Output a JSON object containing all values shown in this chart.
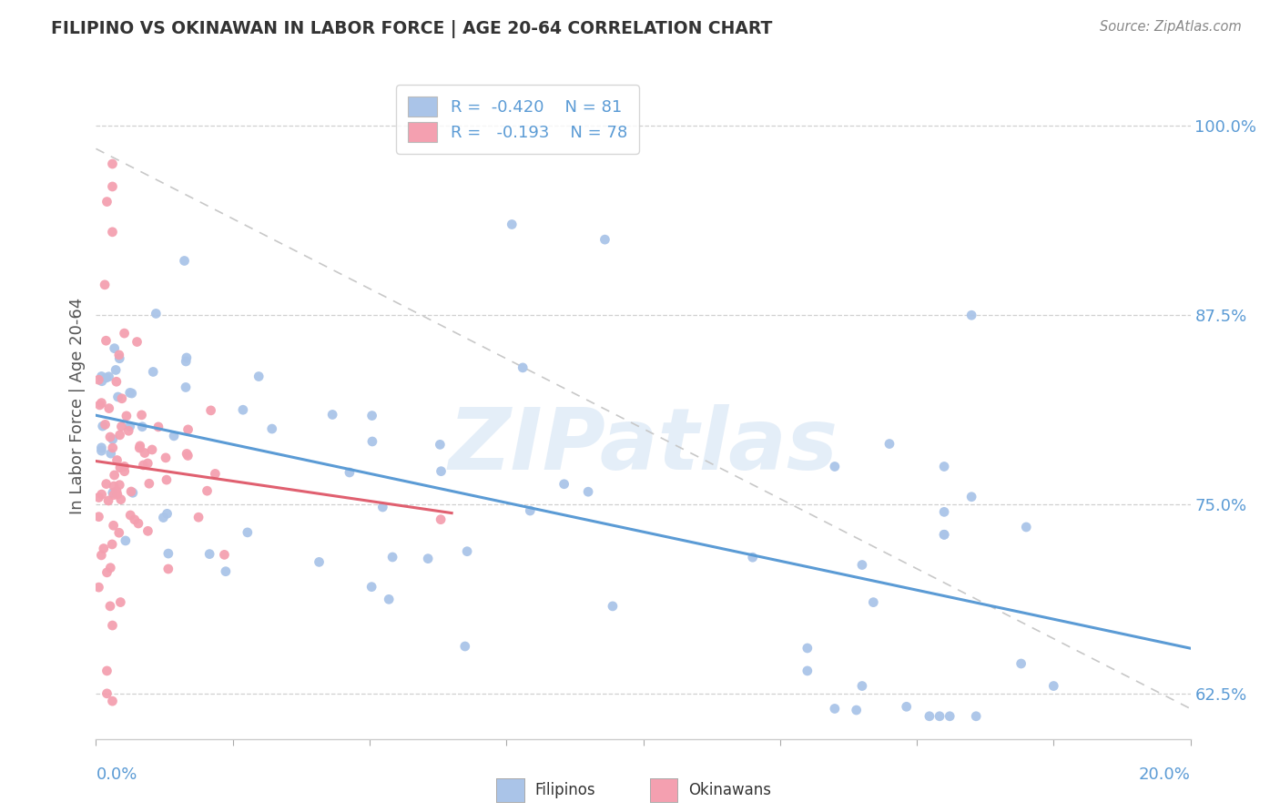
{
  "title": "FILIPINO VS OKINAWAN IN LABOR FORCE | AGE 20-64 CORRELATION CHART",
  "source": "Source: ZipAtlas.com",
  "ylabel": "In Labor Force | Age 20-64",
  "ytick_labels": [
    "62.5%",
    "75.0%",
    "87.5%",
    "100.0%"
  ],
  "ytick_values": [
    0.625,
    0.75,
    0.875,
    1.0
  ],
  "xmin": 0.0,
  "xmax": 0.2,
  "ymin": 0.595,
  "ymax": 1.035,
  "filipino_color": "#aac4e8",
  "okinawan_color": "#f4a0b0",
  "filipino_trend_color": "#5b9bd5",
  "okinawan_trend_color": "#e06070",
  "diagonal_color": "#c8c8c8",
  "watermark": "ZIPatlas",
  "background_color": "#ffffff",
  "legend_label_color": "#5b9bd5",
  "legend_text_color": "#333333",
  "ytick_color": "#5b9bd5",
  "xtick_label_color": "#5b9bd5",
  "title_color": "#333333",
  "source_color": "#888888",
  "ylabel_color": "#555555",
  "grid_color": "#d0d0d0",
  "axis_color": "#cccccc",
  "filipino_R": -0.42,
  "filipino_N": 81,
  "okinawan_R": -0.193,
  "okinawan_N": 78
}
